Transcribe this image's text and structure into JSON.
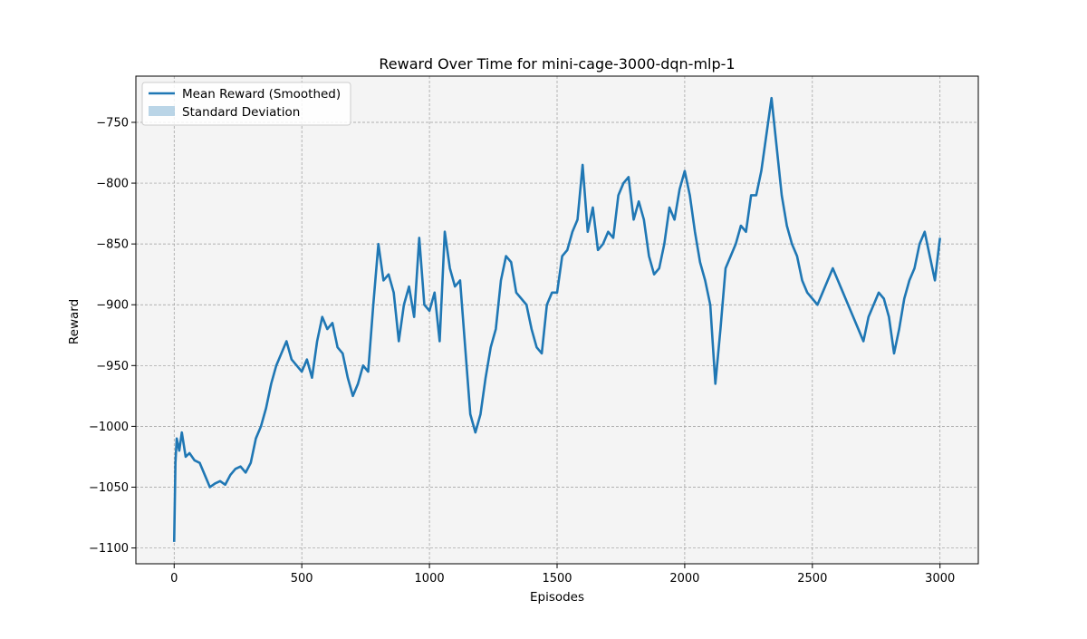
{
  "chart_data": {
    "type": "line",
    "title": "Reward Over Time for mini-cage-3000-dqn-mlp-1",
    "xlabel": "Episodes",
    "ylabel": "Reward",
    "xlim": [
      -150,
      3150
    ],
    "ylim": [
      -1113,
      -712
    ],
    "xticks": [
      0,
      500,
      1000,
      1500,
      2000,
      2500,
      3000
    ],
    "yticks": [
      -1100,
      -1050,
      -1000,
      -950,
      -900,
      -850,
      -800,
      -750
    ],
    "grid": true,
    "background": "#f4f4f4",
    "legend": {
      "position": "top-left",
      "entries": [
        "Mean Reward (Smoothed)",
        "Standard Deviation"
      ]
    },
    "series": [
      {
        "name": "Mean Reward (Smoothed)",
        "color": "#1f77b4",
        "x": [
          0,
          5,
          10,
          20,
          30,
          45,
          60,
          80,
          100,
          120,
          140,
          160,
          180,
          200,
          220,
          240,
          260,
          280,
          300,
          320,
          340,
          360,
          380,
          400,
          420,
          440,
          460,
          480,
          500,
          520,
          540,
          560,
          580,
          600,
          620,
          640,
          660,
          680,
          700,
          720,
          740,
          760,
          780,
          800,
          820,
          840,
          860,
          880,
          900,
          920,
          940,
          960,
          980,
          1000,
          1020,
          1040,
          1060,
          1080,
          1100,
          1120,
          1140,
          1160,
          1180,
          1200,
          1220,
          1240,
          1260,
          1280,
          1300,
          1320,
          1340,
          1360,
          1380,
          1400,
          1420,
          1440,
          1460,
          1480,
          1500,
          1520,
          1540,
          1560,
          1580,
          1600,
          1620,
          1640,
          1660,
          1680,
          1700,
          1720,
          1740,
          1760,
          1780,
          1800,
          1820,
          1840,
          1860,
          1880,
          1900,
          1920,
          1940,
          1960,
          1980,
          2000,
          2020,
          2040,
          2060,
          2080,
          2100,
          2120,
          2140,
          2160,
          2180,
          2200,
          2220,
          2240,
          2260,
          2280,
          2300,
          2320,
          2340,
          2360,
          2380,
          2400,
          2420,
          2440,
          2460,
          2480,
          2500,
          2520,
          2540,
          2560,
          2580,
          2600,
          2620,
          2640,
          2660,
          2680,
          2700,
          2720,
          2740,
          2760,
          2780,
          2800,
          2820,
          2840,
          2860,
          2880,
          2900,
          2920,
          2940,
          2960,
          2980,
          3000
        ],
        "values": [
          -1095,
          -1030,
          -1010,
          -1020,
          -1005,
          -1025,
          -1022,
          -1028,
          -1030,
          -1040,
          -1050,
          -1047,
          -1045,
          -1048,
          -1040,
          -1035,
          -1033,
          -1038,
          -1030,
          -1010,
          -1000,
          -985,
          -965,
          -950,
          -940,
          -930,
          -945,
          -950,
          -955,
          -945,
          -960,
          -930,
          -910,
          -920,
          -915,
          -935,
          -940,
          -960,
          -975,
          -965,
          -950,
          -955,
          -900,
          -850,
          -880,
          -875,
          -890,
          -930,
          -900,
          -885,
          -910,
          -845,
          -900,
          -905,
          -890,
          -930,
          -840,
          -870,
          -885,
          -880,
          -935,
          -990,
          -1005,
          -990,
          -960,
          -935,
          -920,
          -880,
          -860,
          -865,
          -890,
          -895,
          -900,
          -920,
          -935,
          -940,
          -900,
          -890,
          -890,
          -860,
          -855,
          -840,
          -830,
          -785,
          -840,
          -820,
          -855,
          -850,
          -840,
          -845,
          -810,
          -800,
          -795,
          -830,
          -815,
          -830,
          -860,
          -875,
          -870,
          -850,
          -820,
          -830,
          -805,
          -790,
          -810,
          -840,
          -865,
          -880,
          -900,
          -965,
          -920,
          -870,
          -860,
          -850,
          -835,
          -840,
          -810,
          -810,
          -790,
          -760,
          -730,
          -770,
          -810,
          -835,
          -850,
          -860,
          -880,
          -890,
          -895,
          -900,
          -890,
          -880,
          -870,
          -880,
          -890,
          -900,
          -910,
          -920,
          -930,
          -910,
          -900,
          -890,
          -895,
          -910,
          -940,
          -920,
          -895,
          -880,
          -870,
          -850,
          -840,
          -860,
          -880,
          -845
        ]
      }
    ]
  }
}
